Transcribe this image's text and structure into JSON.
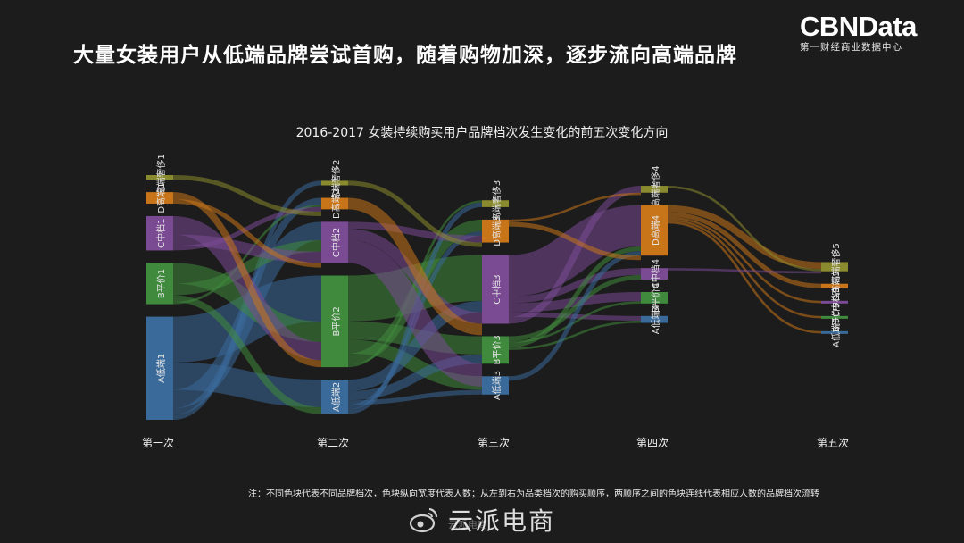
{
  "header": {
    "headline": "大量女装用户从低端品牌尝试首购，随着购物加深，逐步流向高端品牌",
    "brand_name": "CBNData",
    "brand_subtitle": "第一财经商业数据中心"
  },
  "footer": {
    "note": "注：不同色块代表不同品牌档次，色块纵向宽度代表人数；从左到右为品类档次的购买顺序，两顺序之间的色块连线代表相应人数的品牌档次流转",
    "watermark": "云派电商",
    "watermark_small": "云派电商"
  },
  "colors": {
    "E": "#8a8a2e",
    "D": "#c8751a",
    "C": "#7a4a93",
    "B": "#3f8a3c",
    "A": "#3a6a9a"
  },
  "chart_data": {
    "type": "sankey",
    "title": "2016-2017 女装持续购买用户品牌档次发生变化的前五次变化方向",
    "stages": [
      "第一次",
      "第二次",
      "第三次",
      "第四次",
      "第五次"
    ],
    "tiers": [
      "E",
      "D",
      "C",
      "B",
      "A"
    ],
    "nodes": [
      [
        {
          "tier": "E",
          "label": "E高端奢侈1",
          "value": 2
        },
        {
          "tier": "D",
          "label": "D高端1",
          "value": 5
        },
        {
          "tier": "C",
          "label": "C中档1",
          "value": 15
        },
        {
          "tier": "B",
          "label": "B平价1",
          "value": 18
        },
        {
          "tier": "A",
          "label": "A低端1",
          "value": 45
        }
      ],
      [
        {
          "tier": "E",
          "label": "E高端奢侈2",
          "value": 2
        },
        {
          "tier": "D",
          "label": "D高端2",
          "value": 5
        },
        {
          "tier": "C",
          "label": "C中档2",
          "value": 18
        },
        {
          "tier": "B",
          "label": "B平价2",
          "value": 40
        },
        {
          "tier": "A",
          "label": "A低端2",
          "value": 15
        }
      ],
      [
        {
          "tier": "E",
          "label": "E高端奢侈3",
          "value": 3
        },
        {
          "tier": "D",
          "label": "D高端3",
          "value": 10
        },
        {
          "tier": "C",
          "label": "C中档3",
          "value": 30
        },
        {
          "tier": "B",
          "label": "B平价3",
          "value": 12
        },
        {
          "tier": "A",
          "label": "A低端3",
          "value": 8
        }
      ],
      [
        {
          "tier": "E",
          "label": "E高端奢侈4",
          "value": 3
        },
        {
          "tier": "D",
          "label": "D高端4",
          "value": 22
        },
        {
          "tier": "C",
          "label": "C中档4",
          "value": 5
        },
        {
          "tier": "B",
          "label": "B平价4",
          "value": 5
        },
        {
          "tier": "A",
          "label": "A低端4",
          "value": 3
        }
      ],
      [
        {
          "tier": "E",
          "label": "E高端奢侈5",
          "value": 4
        },
        {
          "tier": "D",
          "label": "D高端5",
          "value": 2
        },
        {
          "tier": "C",
          "label": "C中档5",
          "value": 1
        },
        {
          "tier": "B",
          "label": "B平价5",
          "value": 1
        },
        {
          "tier": "A",
          "label": "A低端5",
          "value": 1
        }
      ]
    ],
    "links": [
      [
        {
          "from": "A",
          "to": "B",
          "value": 20
        },
        {
          "from": "A",
          "to": "A",
          "value": 12
        },
        {
          "from": "A",
          "to": "C",
          "value": 8
        },
        {
          "from": "A",
          "to": "D",
          "value": 3
        },
        {
          "from": "A",
          "to": "E",
          "value": 2
        },
        {
          "from": "B",
          "to": "B",
          "value": 9
        },
        {
          "from": "B",
          "to": "C",
          "value": 5
        },
        {
          "from": "B",
          "to": "A",
          "value": 3
        },
        {
          "from": "B",
          "to": "D",
          "value": 1
        },
        {
          "from": "C",
          "to": "B",
          "value": 8
        },
        {
          "from": "C",
          "to": "C",
          "value": 5
        },
        {
          "from": "C",
          "to": "D",
          "value": 2
        },
        {
          "from": "D",
          "to": "B",
          "value": 3
        },
        {
          "from": "D",
          "to": "C",
          "value": 2
        },
        {
          "from": "E",
          "to": "D",
          "value": 2
        }
      ],
      [
        {
          "from": "B",
          "to": "C",
          "value": 20
        },
        {
          "from": "B",
          "to": "B",
          "value": 8
        },
        {
          "from": "B",
          "to": "A",
          "value": 6
        },
        {
          "from": "B",
          "to": "D",
          "value": 5
        },
        {
          "from": "B",
          "to": "E",
          "value": 1
        },
        {
          "from": "A",
          "to": "C",
          "value": 5
        },
        {
          "from": "A",
          "to": "B",
          "value": 4
        },
        {
          "from": "A",
          "to": "A",
          "value": 2
        },
        {
          "from": "A",
          "to": "D",
          "value": 2
        },
        {
          "from": "A",
          "to": "E",
          "value": 2
        },
        {
          "from": "C",
          "to": "D",
          "value": 3
        },
        {
          "from": "C",
          "to": "C",
          "value": 5
        },
        {
          "from": "C",
          "to": "B",
          "value": 10
        },
        {
          "from": "D",
          "to": "C",
          "value": 5
        },
        {
          "from": "E",
          "to": "D",
          "value": 2
        }
      ],
      [
        {
          "from": "C",
          "to": "D",
          "value": 18
        },
        {
          "from": "C",
          "to": "C",
          "value": 3
        },
        {
          "from": "C",
          "to": "B",
          "value": 4
        },
        {
          "from": "C",
          "to": "A",
          "value": 2
        },
        {
          "from": "C",
          "to": "E",
          "value": 3
        },
        {
          "from": "B",
          "to": "C",
          "value": 2
        },
        {
          "from": "B",
          "to": "B",
          "value": 1
        },
        {
          "from": "B",
          "to": "D",
          "value": 2
        },
        {
          "from": "B",
          "to": "A",
          "value": 1
        },
        {
          "from": "A",
          "to": "D",
          "value": 2
        },
        {
          "from": "D",
          "to": "E",
          "value": 1
        },
        {
          "from": "D",
          "to": "D",
          "value": 2
        }
      ],
      [
        {
          "from": "D",
          "to": "E",
          "value": 3
        },
        {
          "from": "D",
          "to": "D",
          "value": 2
        },
        {
          "from": "D",
          "to": "C",
          "value": 1
        },
        {
          "from": "D",
          "to": "B",
          "value": 1
        },
        {
          "from": "D",
          "to": "A",
          "value": 1
        },
        {
          "from": "E",
          "to": "E",
          "value": 1
        },
        {
          "from": "C",
          "to": "E",
          "value": 1
        }
      ]
    ]
  }
}
